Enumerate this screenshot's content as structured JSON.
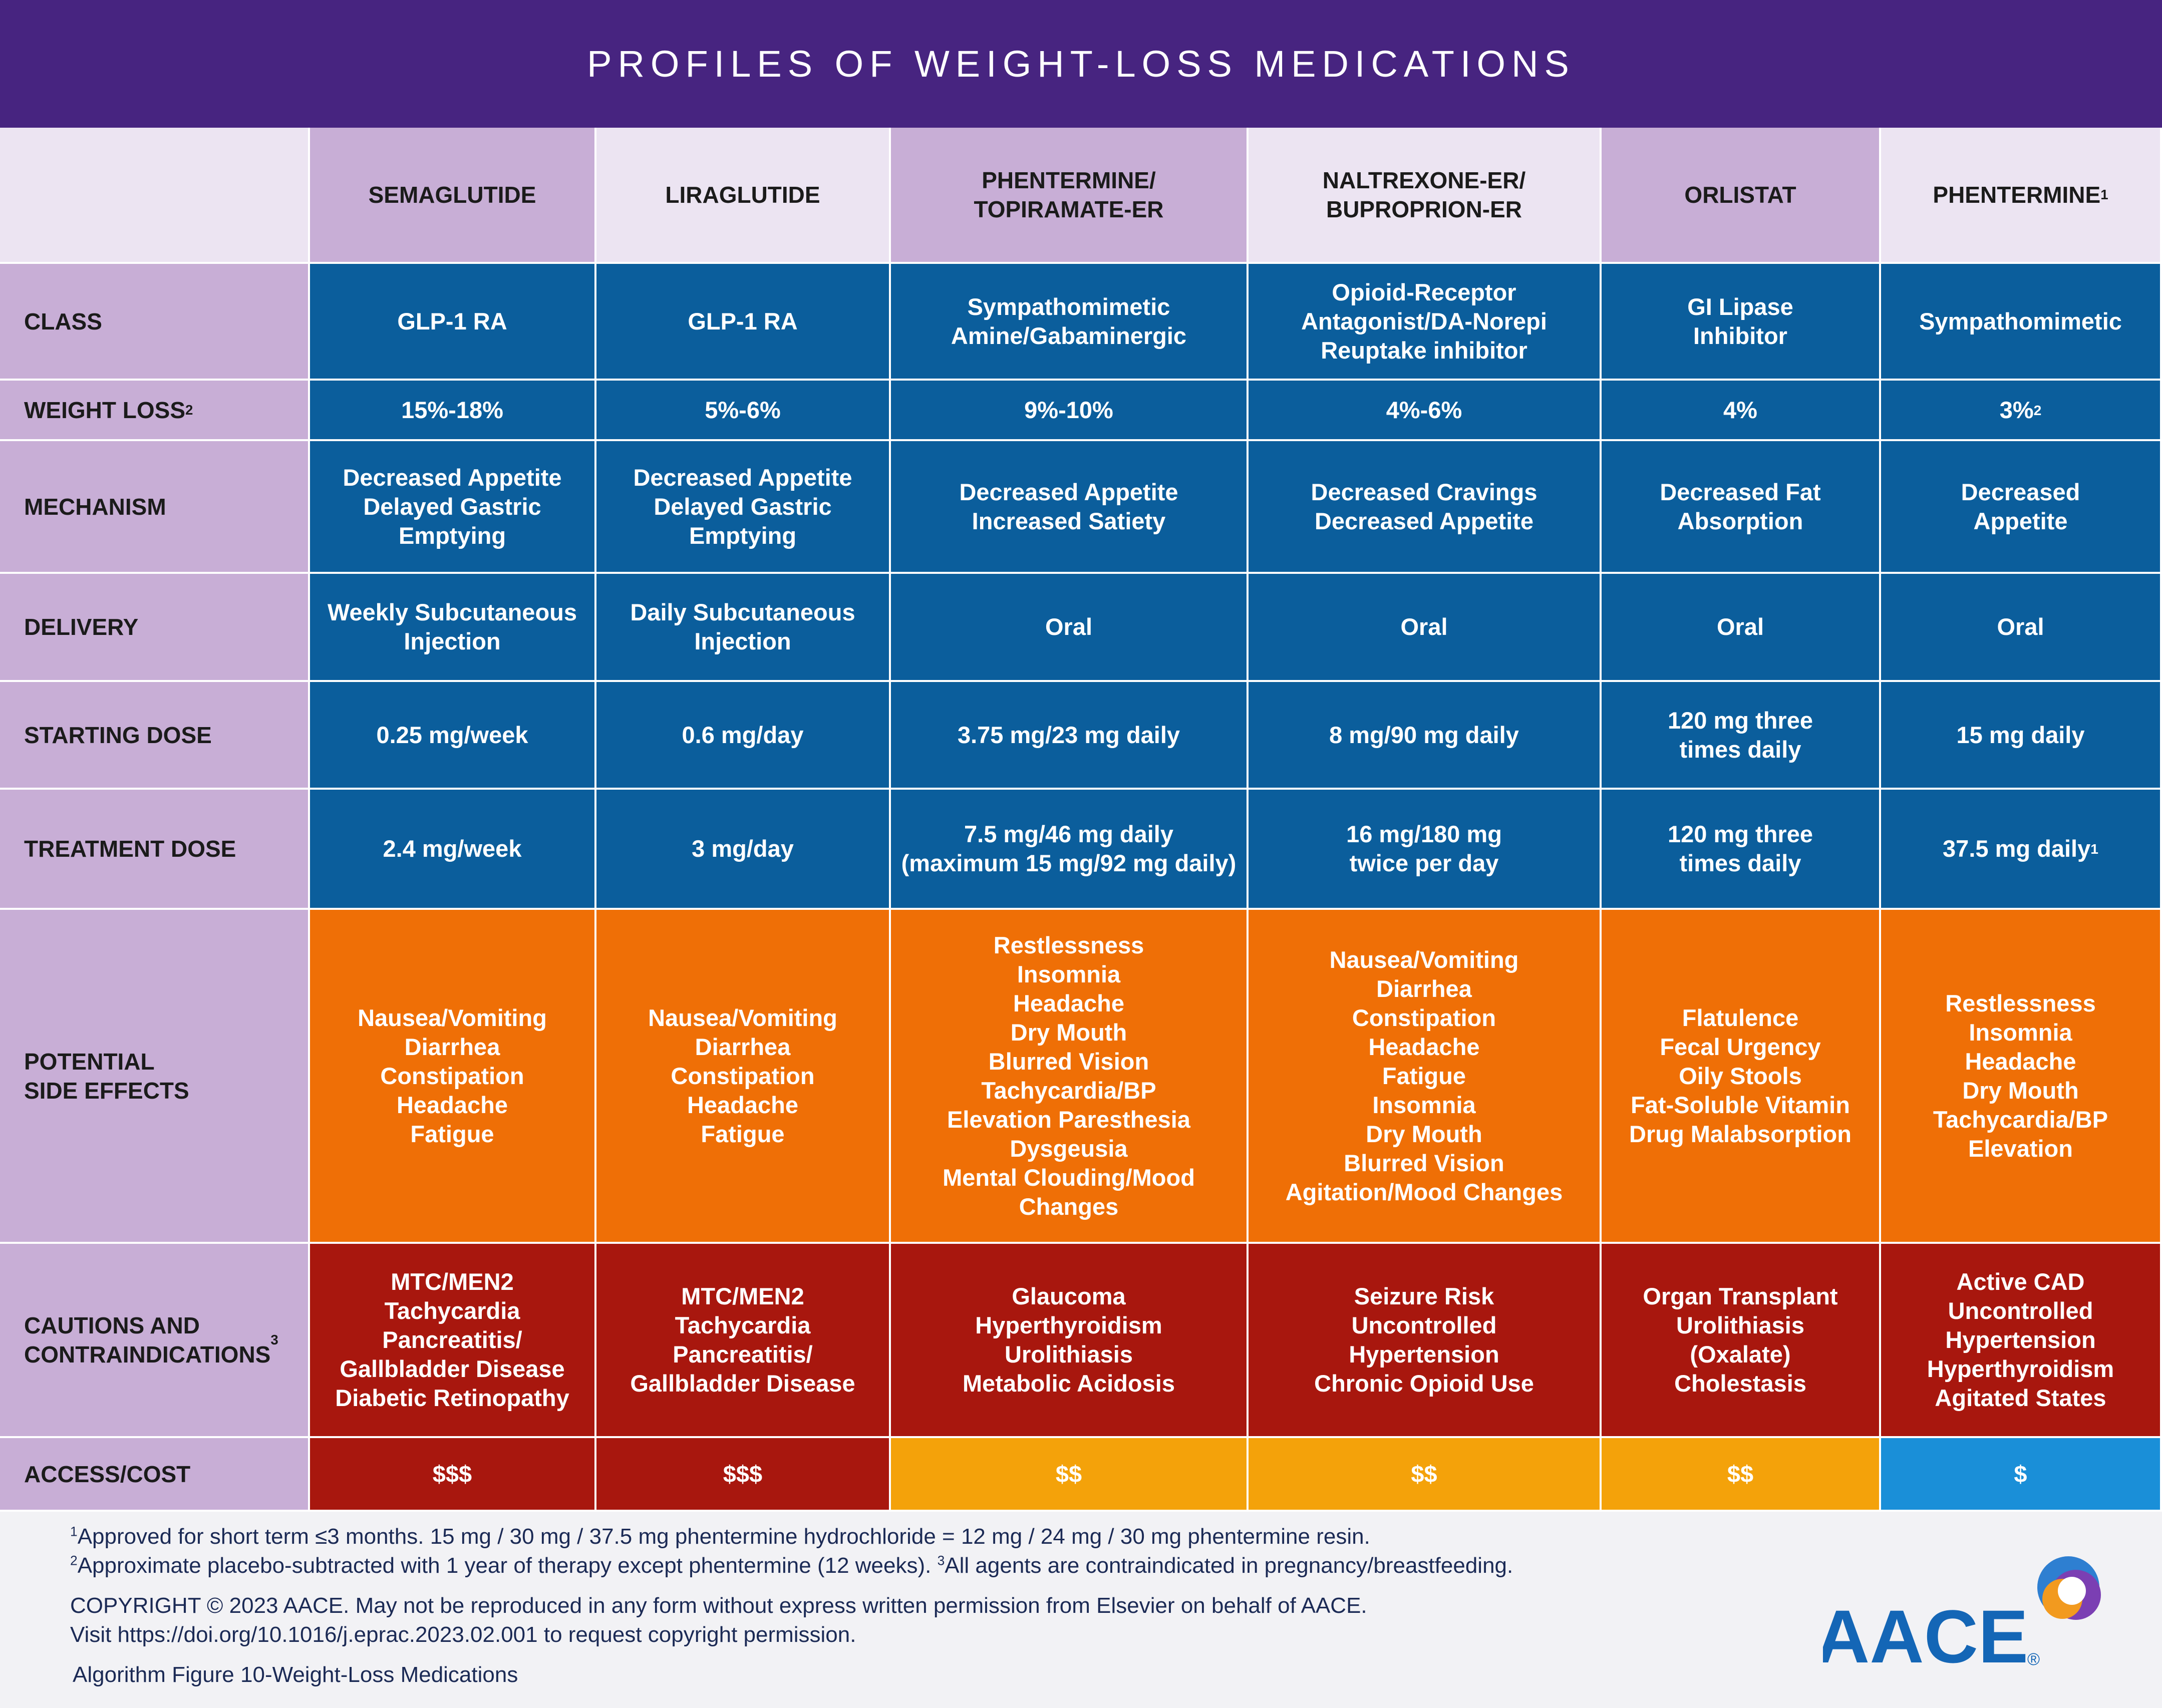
{
  "title": "PROFILES OF WEIGHT-LOSS MEDICATIONS",
  "columns": [
    {
      "label": "SEMAGLUTIDE",
      "sup": ""
    },
    {
      "label": "LIRAGLUTIDE",
      "sup": ""
    },
    {
      "label": "PHENTERMINE/\nTOPIRAMATE-ER",
      "sup": ""
    },
    {
      "label": "NALTREXONE-ER/\nBUPROPRION-ER",
      "sup": ""
    },
    {
      "label": "ORLISTAT",
      "sup": ""
    },
    {
      "label": "PHENTERMINE",
      "sup": "1"
    }
  ],
  "rows": [
    {
      "label": "CLASS",
      "label_sup": "",
      "style": "blue",
      "cells": [
        {
          "text": "GLP-1 RA"
        },
        {
          "text": "GLP-1 RA"
        },
        {
          "text": "Sympathomimetic\nAmine/Gabaminergic"
        },
        {
          "text": "Opioid-Receptor\nAntagonist/DA-Norepi\nReuptake inhibitor"
        },
        {
          "text": "GI Lipase\nInhibitor"
        },
        {
          "text": "Sympathomimetic"
        }
      ]
    },
    {
      "label": "WEIGHT LOSS",
      "label_sup": "2",
      "style": "blue",
      "cells": [
        {
          "text": "15%-18%"
        },
        {
          "text": "5%-6%"
        },
        {
          "text": "9%-10%"
        },
        {
          "text": "4%-6%"
        },
        {
          "text": "4%"
        },
        {
          "text": "3%",
          "sup": "2"
        }
      ]
    },
    {
      "label": "MECHANISM",
      "label_sup": "",
      "style": "blue",
      "cells": [
        {
          "text": "Decreased Appetite\nDelayed Gastric\nEmptying"
        },
        {
          "text": "Decreased Appetite\nDelayed Gastric\nEmptying"
        },
        {
          "text": "Decreased Appetite\nIncreased Satiety"
        },
        {
          "text": "Decreased Cravings\nDecreased Appetite"
        },
        {
          "text": "Decreased Fat\nAbsorption"
        },
        {
          "text": "Decreased\nAppetite"
        }
      ]
    },
    {
      "label": "DELIVERY",
      "label_sup": "",
      "style": "blue",
      "cells": [
        {
          "text": "Weekly Subcutaneous\nInjection"
        },
        {
          "text": "Daily Subcutaneous\nInjection"
        },
        {
          "text": "Oral"
        },
        {
          "text": "Oral"
        },
        {
          "text": "Oral"
        },
        {
          "text": "Oral"
        }
      ]
    },
    {
      "label": "STARTING DOSE",
      "label_sup": "",
      "style": "blue",
      "cells": [
        {
          "text": "0.25 mg/week"
        },
        {
          "text": "0.6 mg/day"
        },
        {
          "text": "3.75 mg/23 mg daily"
        },
        {
          "text": "8 mg/90 mg daily"
        },
        {
          "text": "120 mg three\ntimes daily"
        },
        {
          "text": "15 mg daily"
        }
      ]
    },
    {
      "label": "TREATMENT DOSE",
      "label_sup": "",
      "style": "blue",
      "cells": [
        {
          "text": "2.4 mg/week"
        },
        {
          "text": "3 mg/day"
        },
        {
          "text": "7.5 mg/46 mg daily\n(maximum 15 mg/92 mg daily)"
        },
        {
          "text": "16 mg/180 mg\ntwice per day"
        },
        {
          "text": "120 mg three\ntimes daily"
        },
        {
          "text": "37.5 mg daily",
          "sup": "1"
        }
      ]
    },
    {
      "label": "POTENTIAL\nSIDE EFFECTS",
      "label_sup": "",
      "style": "orange",
      "cells": [
        {
          "text": "Nausea/Vomiting\nDiarrhea\nConstipation\nHeadache\nFatigue"
        },
        {
          "text": "Nausea/Vomiting\nDiarrhea\nConstipation\nHeadache\nFatigue"
        },
        {
          "text": "Restlessness\nInsomnia\nHeadache\nDry Mouth\nBlurred Vision\nTachycardia/BP\nElevation Paresthesia\nDysgeusia\nMental Clouding/Mood\nChanges"
        },
        {
          "text": "Nausea/Vomiting\nDiarrhea\nConstipation\nHeadache\nFatigue\nInsomnia\nDry Mouth\nBlurred Vision\nAgitation/Mood Changes"
        },
        {
          "text": "Flatulence\nFecal Urgency\nOily Stools\nFat-Soluble Vitamin\nDrug Malabsorption"
        },
        {
          "text": "Restlessness\nInsomnia\nHeadache\nDry Mouth\nTachycardia/BP\nElevation"
        }
      ]
    },
    {
      "label": "CAUTIONS AND\nCONTRAINDICATIONS",
      "label_sup": "3",
      "style": "red",
      "cells": [
        {
          "text": "MTC/MEN2\nTachycardia\nPancreatitis/\nGallbladder Disease\nDiabetic Retinopathy"
        },
        {
          "text": "MTC/MEN2\nTachycardia\nPancreatitis/\nGallbladder Disease"
        },
        {
          "text": "Glaucoma\nHyperthyroidism\nUrolithiasis\nMetabolic Acidosis"
        },
        {
          "text": "Seizure Risk\nUncontrolled\nHypertension\nChronic Opioid Use"
        },
        {
          "text": "Organ Transplant\nUrolithiasis\n(Oxalate)\nCholestasis"
        },
        {
          "text": "Active CAD\nUncontrolled\nHypertension\nHyperthyroidism\nAgitated States"
        }
      ]
    },
    {
      "label": "ACCESS/COST",
      "label_sup": "",
      "style": "mixed",
      "cells": [
        {
          "text": "$$$",
          "style": "red"
        },
        {
          "text": "$$$",
          "style": "red"
        },
        {
          "text": "$$",
          "style": "gold"
        },
        {
          "text": "$$",
          "style": "gold"
        },
        {
          "text": "$$",
          "style": "gold"
        },
        {
          "text": "$",
          "style": "sky"
        }
      ]
    }
  ],
  "footnotes": {
    "fn1_mark": "1",
    "fn1_text": "Approved for short term ≤3 months. 15 mg  / 30 mg / 37.5 mg phentermine hydrochloride = 12 mg / 24 mg / 30 mg phentermine resin.",
    "fn2_mark": "2",
    "fn2_text": "Approximate placebo-subtracted with 1 year of therapy except phentermine (12 weeks). ",
    "fn3_mark": "3",
    "fn3_text": "All agents are contraindicated in pregnancy/breastfeeding.",
    "copyright": "COPYRIGHT © 2023 AACE. May not be reproduced in any form without express written permission from Elsevier on behalf of AACE.",
    "visit": "Visit https://doi.org/10.1016/j.eprac.2023.02.001 to request copyright permission.",
    "caption": "Algorithm Figure 10-Weight-Loss Medications"
  },
  "logo": {
    "text": "AACE",
    "mark": "®"
  },
  "colors": {
    "banner": "#472480",
    "blue": "#0b5e9c",
    "orange": "#ef6f06",
    "red": "#a8170e",
    "gold": "#f4a20a",
    "sky": "#1a8fd8",
    "lavender_dark": "#c8aed6",
    "lavender_light": "#ece4f2"
  }
}
